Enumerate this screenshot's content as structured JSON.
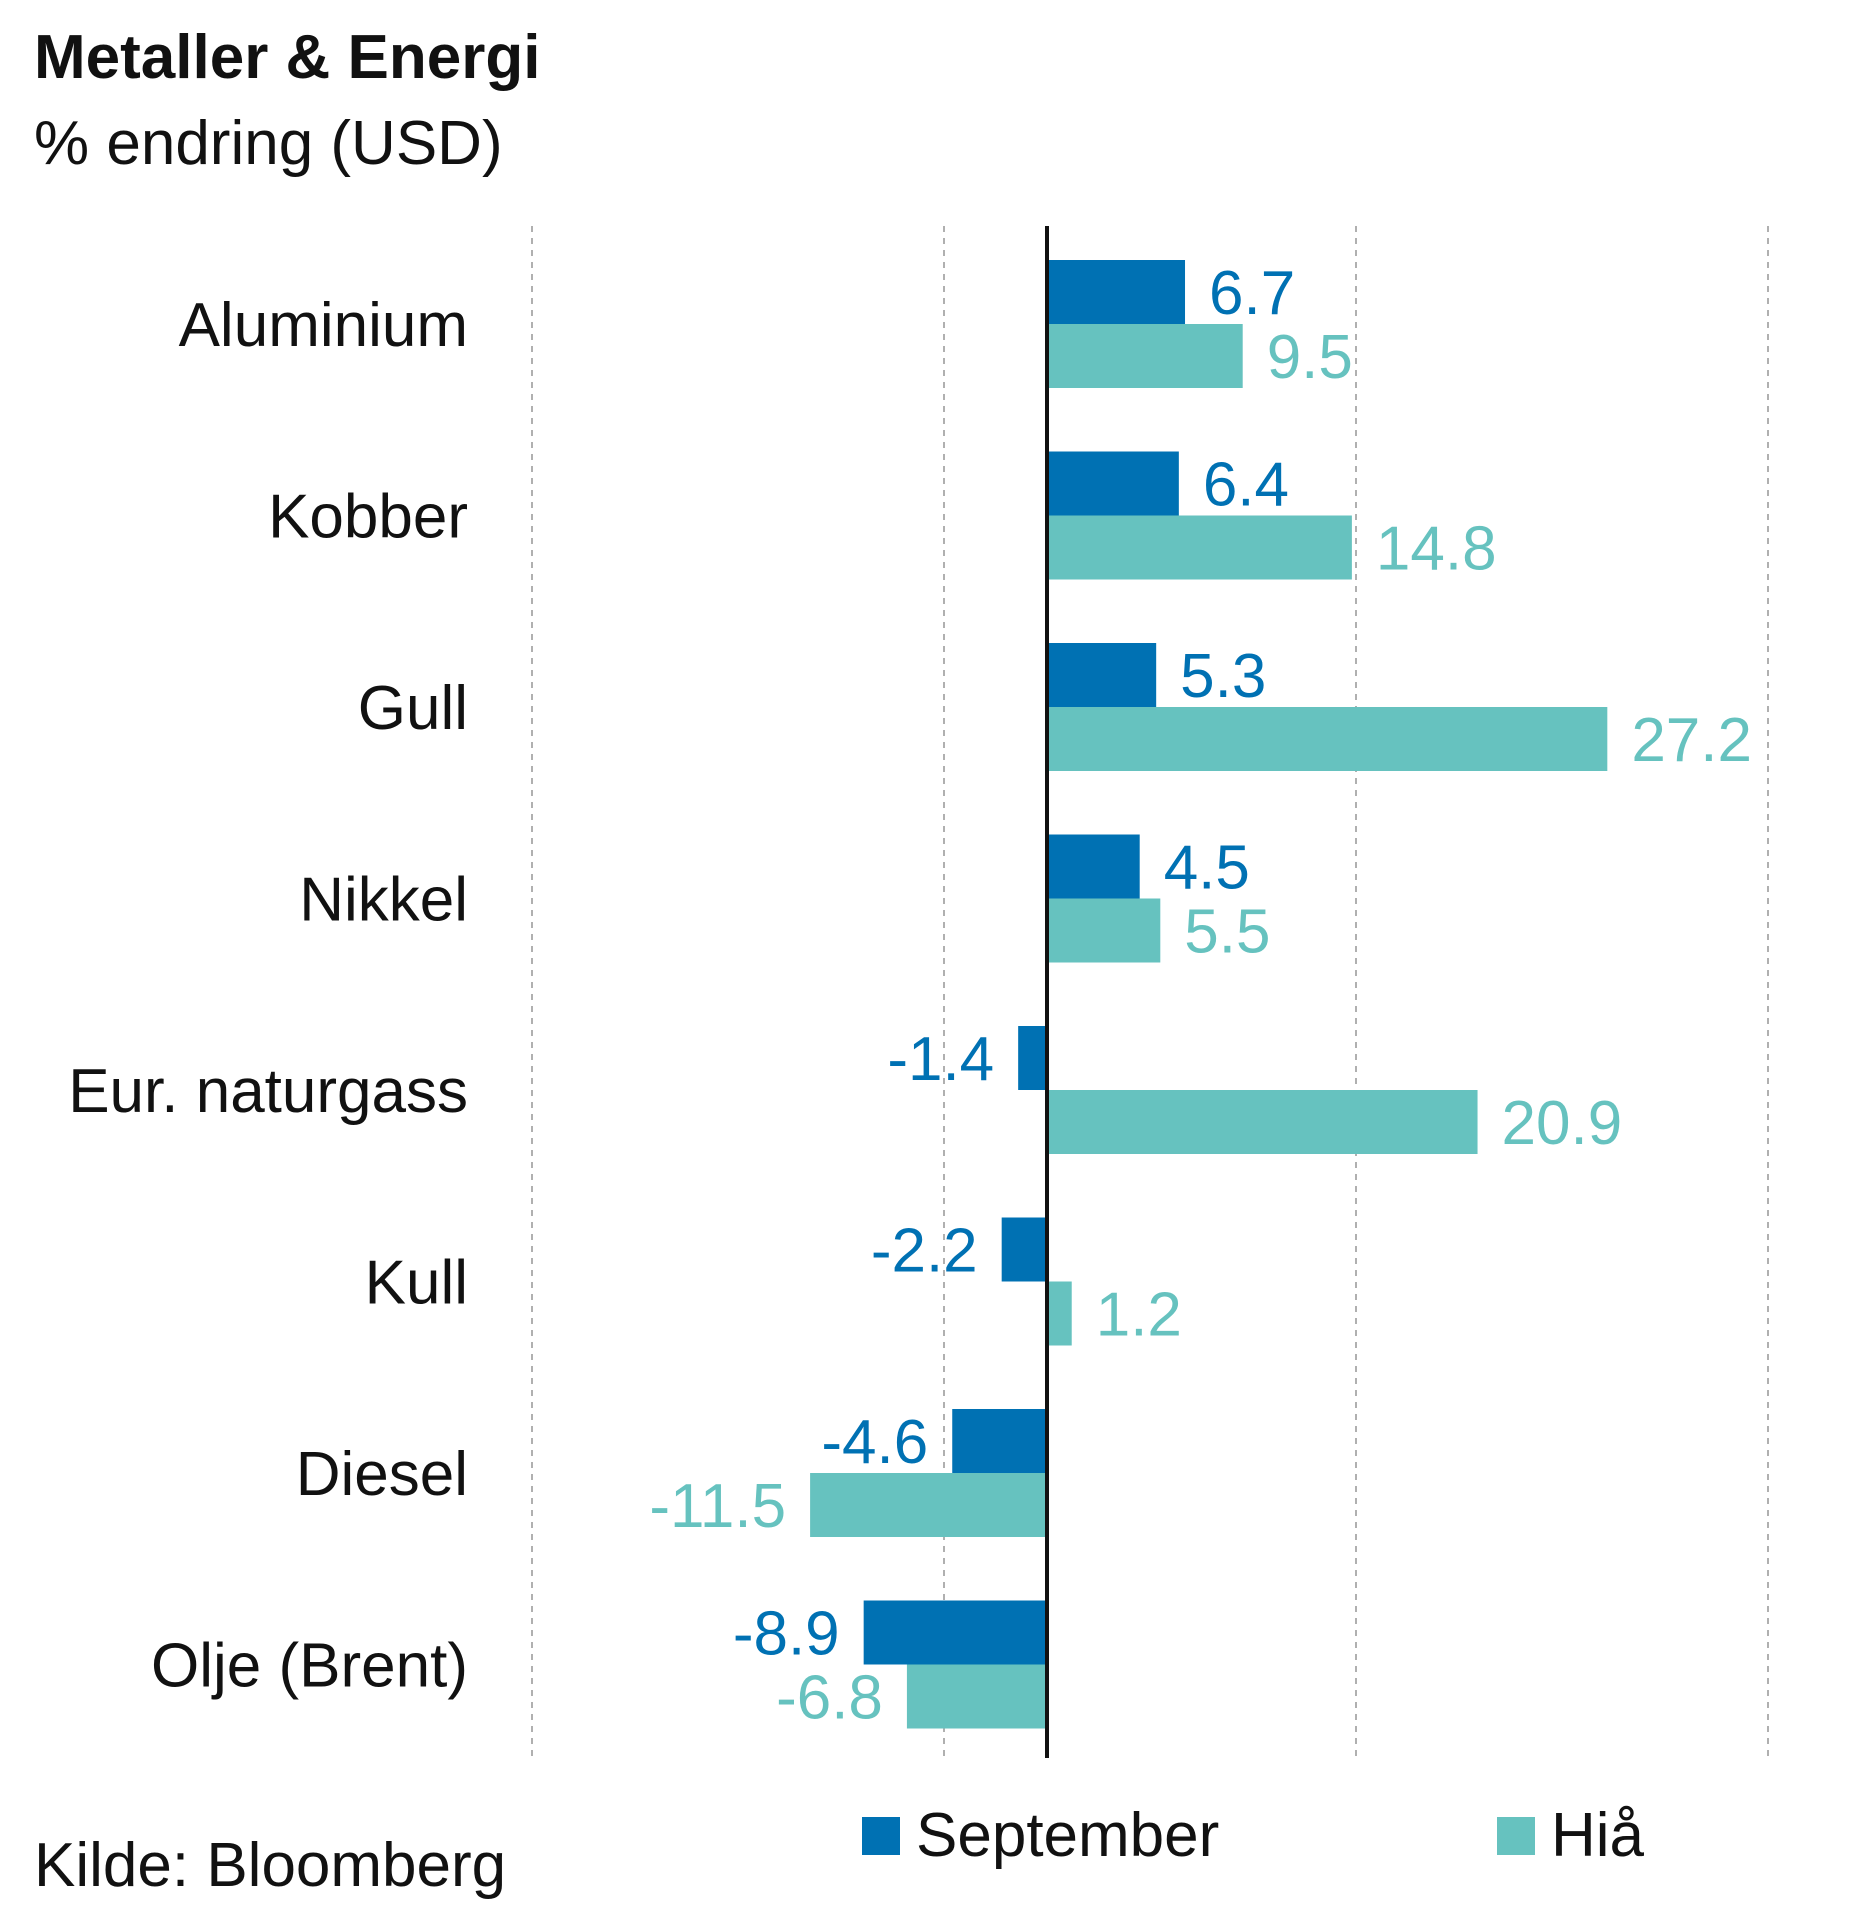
{
  "header": {
    "title": "Metaller & Energi",
    "subtitle": "% endring (USD)"
  },
  "footer": {
    "source": "Kilde: Bloomberg"
  },
  "colors": {
    "september": "#0071b3",
    "ytd": "#66c2bf",
    "axis": "#111111",
    "grid": "#b0b0b0"
  },
  "chart_data": {
    "type": "bar",
    "orientation": "horizontal",
    "categories": [
      "Aluminium",
      "Kobber",
      "Gull",
      "Nikkel",
      "Eur. naturgass",
      "Kull",
      "Diesel",
      "Olje (Brent)"
    ],
    "series": [
      {
        "name": "September",
        "values": [
          6.7,
          6.4,
          5.3,
          4.5,
          -1.4,
          -2.2,
          -4.6,
          -8.9
        ]
      },
      {
        "name": "Hiå",
        "values": [
          9.5,
          14.8,
          27.2,
          5.5,
          20.9,
          1.2,
          -11.5,
          -6.8
        ]
      }
    ],
    "value_labels": {
      "September": [
        "6.7",
        "6.4",
        "5.3",
        "4.5",
        "-1.4",
        "-2.2",
        "-4.6",
        "-8.9"
      ],
      "Hiå": [
        "9.5",
        "14.8",
        "27.2",
        "5.5",
        "20.9",
        "1.2",
        "-11.5",
        "-6.8"
      ]
    },
    "xlim": [
      -25,
      35
    ],
    "gridlines": [
      -25,
      -5,
      15,
      35
    ],
    "grid": true,
    "legend_position": "bottom"
  }
}
